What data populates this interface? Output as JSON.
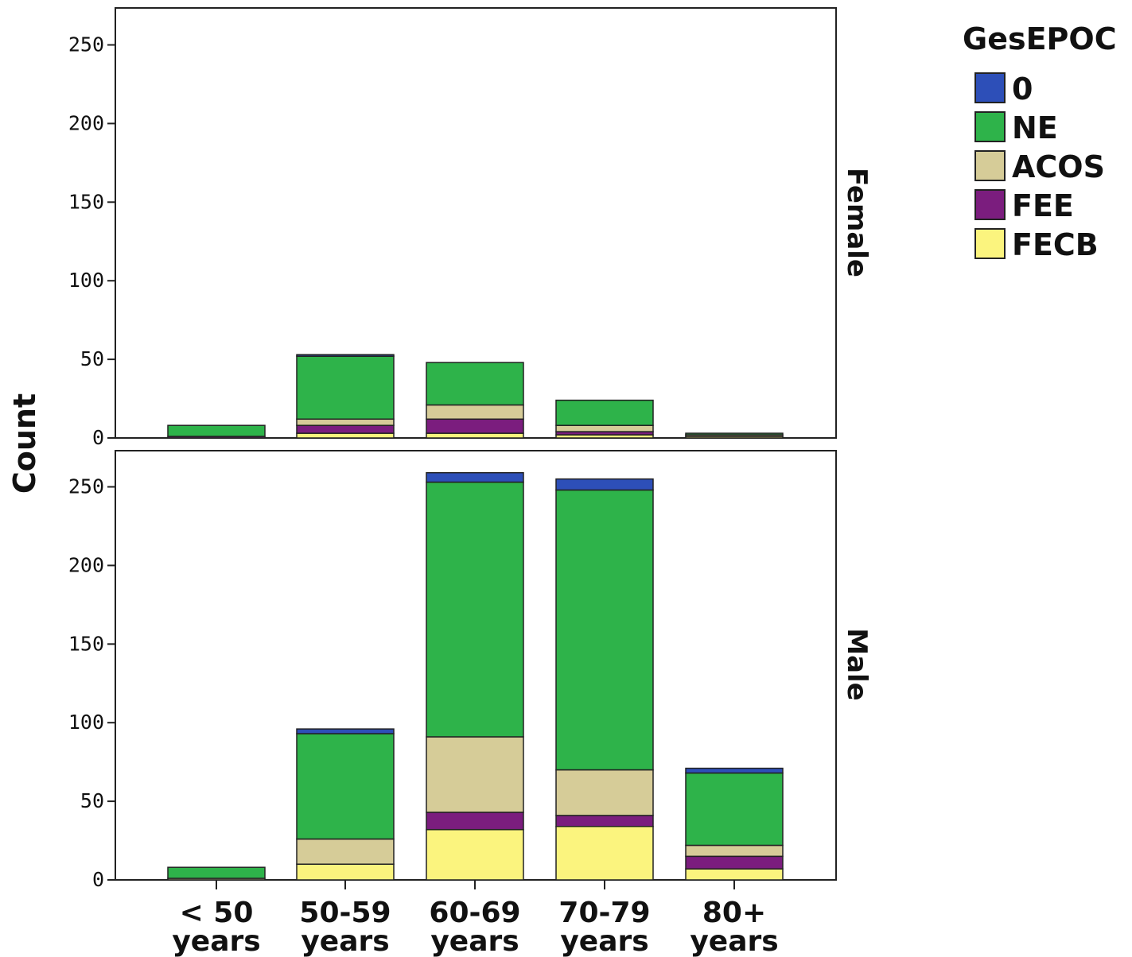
{
  "chart_data": {
    "type": "bar",
    "stacked": true,
    "ylabel": "Count",
    "xlabel": "",
    "ylim": [
      0,
      270
    ],
    "yticks": [
      0,
      50,
      100,
      150,
      200,
      250
    ],
    "categories": [
      {
        "line1": "< 50",
        "line2": "years"
      },
      {
        "line1": "50-59",
        "line2": "years"
      },
      {
        "line1": "60-69",
        "line2": "years"
      },
      {
        "line1": "70-79",
        "line2": "years"
      },
      {
        "line1": "80+",
        "line2": "years"
      }
    ],
    "legend": {
      "title": "GesEPOC",
      "position": "right",
      "items": [
        {
          "name": "0",
          "color": "#2d4fb8"
        },
        {
          "name": "NE",
          "color": "#2eb34a"
        },
        {
          "name": "ACOS",
          "color": "#d6cc98"
        },
        {
          "name": "FEE",
          "color": "#7b1d7e"
        },
        {
          "name": "FECB",
          "color": "#fbf47e"
        }
      ]
    },
    "stack_order": [
      "FECB",
      "FEE",
      "ACOS",
      "NE",
      "0"
    ],
    "panels": [
      {
        "label": "Female",
        "series": [
          {
            "name": "FECB",
            "values": [
              0,
              3,
              3,
              2,
              1
            ]
          },
          {
            "name": "FEE",
            "values": [
              1,
              5,
              9,
              2,
              0
            ]
          },
          {
            "name": "ACOS",
            "values": [
              0,
              4,
              9,
              4,
              1
            ]
          },
          {
            "name": "NE",
            "values": [
              7,
              40,
              27,
              16,
              1
            ]
          },
          {
            "name": "0",
            "values": [
              0,
              1,
              0,
              0,
              0
            ]
          }
        ]
      },
      {
        "label": "Male",
        "series": [
          {
            "name": "FECB",
            "values": [
              0,
              10,
              32,
              34,
              7
            ]
          },
          {
            "name": "FEE",
            "values": [
              0,
              0,
              11,
              7,
              8
            ]
          },
          {
            "name": "ACOS",
            "values": [
              1,
              16,
              48,
              29,
              7
            ]
          },
          {
            "name": "NE",
            "values": [
              7,
              67,
              162,
              178,
              46
            ]
          },
          {
            "name": "0",
            "values": [
              0,
              3,
              6,
              7,
              3
            ]
          }
        ]
      }
    ]
  }
}
